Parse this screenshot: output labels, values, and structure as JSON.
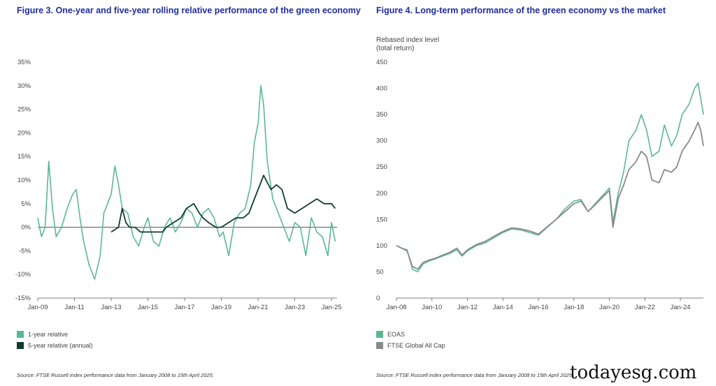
{
  "figure3": {
    "title": "Figure 3. One-year and five-year rolling relative performance of the green economy",
    "source": "Source: FTSE Russell index performance data from January 2008 to 15th April 2025.",
    "legend": [
      {
        "label": "1-year relative",
        "color": "#5ab893"
      },
      {
        "label": "5-year relative (annual)",
        "color": "#0f3d2a"
      }
    ]
  },
  "figure4": {
    "title": "Figure 4. Long-term performance of the green economy vs the market",
    "ylabel_line1": "Rebased index level",
    "ylabel_line2": "(total return)",
    "source": "Source: FTSE Russell index performance data from January 2008 to 15th April 2025.",
    "legend": [
      {
        "label": "EOAS",
        "color": "#5ab893"
      },
      {
        "label": "FTSE Global All Cap",
        "color": "#8a8a8a"
      }
    ]
  },
  "watermark": "todayesg.com",
  "chart_data": [
    {
      "type": "line",
      "title": "Figure 3. One-year and five-year rolling relative performance of the green economy",
      "xlabel": "",
      "ylabel": "",
      "x_range": [
        2009.0,
        2025.3
      ],
      "ylim": [
        -15,
        35
      ],
      "y_ticks": [
        35,
        30,
        25,
        20,
        15,
        10,
        5,
        0,
        -5,
        -10,
        -15
      ],
      "y_tick_labels": [
        "35%",
        "30%",
        "25%",
        "20%",
        "15%",
        "10%",
        "5%",
        "0%",
        "-5%",
        "-10%",
        "-15%"
      ],
      "x_ticks": [
        2009,
        2011,
        2013,
        2015,
        2017,
        2019,
        2021,
        2023,
        2025
      ],
      "x_tick_labels": [
        "Jan-09",
        "Jan-11",
        "Jan-13",
        "Jan-15",
        "Jan-17",
        "Jan-19",
        "Jan-21",
        "Jan-23",
        "Jan-25"
      ],
      "zero_line": true,
      "series": [
        {
          "name": "1-year relative",
          "color": "#5ab893",
          "x": [
            2009.0,
            2009.2,
            2009.4,
            2009.6,
            2009.8,
            2010.0,
            2010.3,
            2010.6,
            2010.9,
            2011.1,
            2011.3,
            2011.5,
            2011.8,
            2012.1,
            2012.4,
            2012.6,
            2012.8,
            2013.0,
            2013.2,
            2013.4,
            2013.6,
            2013.9,
            2014.2,
            2014.5,
            2014.8,
            2015.0,
            2015.3,
            2015.6,
            2015.9,
            2016.2,
            2016.5,
            2016.8,
            2017.1,
            2017.4,
            2017.7,
            2018.0,
            2018.3,
            2018.6,
            2018.9,
            2019.1,
            2019.4,
            2019.7,
            2020.0,
            2020.3,
            2020.6,
            2020.8,
            2021.0,
            2021.15,
            2021.3,
            2021.5,
            2021.8,
            2022.1,
            2022.4,
            2022.7,
            2023.0,
            2023.3,
            2023.6,
            2023.9,
            2024.2,
            2024.5,
            2024.8,
            2025.0,
            2025.2
          ],
          "values": [
            2,
            -2,
            0,
            14,
            4,
            -2,
            0,
            4,
            7,
            8,
            2,
            -3,
            -8,
            -11,
            -6,
            3,
            5,
            7,
            13,
            9,
            4,
            3,
            -2,
            -4,
            0,
            2,
            -3,
            -4,
            0,
            2,
            -1,
            1,
            4,
            3,
            0,
            3,
            4,
            2,
            -2,
            -1,
            -6,
            1,
            3,
            4,
            9,
            18,
            22,
            30,
            26,
            14,
            6,
            3,
            0,
            -3,
            1,
            0,
            -6,
            2,
            -1,
            -2,
            -6,
            1,
            -3
          ]
        },
        {
          "name": "5-year relative (annual)",
          "color": "#0f3d2a",
          "x": [
            2013.0,
            2013.4,
            2013.6,
            2013.8,
            2014.0,
            2014.3,
            2014.6,
            2015.0,
            2015.4,
            2015.8,
            2016.0,
            2016.4,
            2016.8,
            2017.1,
            2017.5,
            2017.8,
            2018.0,
            2018.3,
            2018.7,
            2019.0,
            2019.4,
            2019.8,
            2020.2,
            2020.5,
            2020.8,
            2021.0,
            2021.3,
            2021.7,
            2022.0,
            2022.3,
            2022.6,
            2023.0,
            2023.4,
            2023.8,
            2024.2,
            2024.6,
            2025.0,
            2025.2
          ],
          "values": [
            -1,
            0,
            4,
            1,
            0,
            0,
            -1,
            -1,
            -1,
            -1,
            0,
            1,
            2,
            4,
            5,
            3,
            2,
            1,
            0,
            0,
            1,
            2,
            2,
            3,
            6,
            8,
            11,
            8,
            9,
            8,
            4,
            3,
            4,
            5,
            6,
            5,
            5,
            4
          ]
        }
      ]
    },
    {
      "type": "line",
      "title": "Figure 4. Long-term performance of the green economy vs the market",
      "xlabel": "",
      "ylabel": "Rebased index level (total return)",
      "x_range": [
        2008.0,
        2025.3
      ],
      "ylim": [
        0,
        450
      ],
      "y_ticks": [
        0,
        50,
        100,
        150,
        200,
        250,
        300,
        350,
        400,
        450
      ],
      "y_tick_labels": [
        "0",
        "50",
        "100",
        "150",
        "200",
        "250",
        "300",
        "350",
        "400",
        "450"
      ],
      "x_ticks": [
        2008,
        2010,
        2012,
        2014,
        2016,
        2018,
        2020,
        2022,
        2024
      ],
      "x_tick_labels": [
        "Jan-08",
        "Jan-10",
        "Jan-12",
        "Jan-14",
        "Jan-16",
        "Jan-18",
        "Jan-20",
        "Jan-22",
        "Jan-24"
      ],
      "series": [
        {
          "name": "EOAS",
          "color": "#5ab893",
          "x": [
            2008.0,
            2008.3,
            2008.6,
            2008.9,
            2009.2,
            2009.5,
            2009.8,
            2010.2,
            2010.6,
            2011.0,
            2011.4,
            2011.7,
            2012.0,
            2012.5,
            2013.0,
            2013.5,
            2014.0,
            2014.5,
            2015.0,
            2015.5,
            2016.0,
            2016.5,
            2017.0,
            2017.5,
            2018.0,
            2018.4,
            2018.8,
            2019.2,
            2019.6,
            2020.0,
            2020.2,
            2020.5,
            2020.8,
            2021.1,
            2021.5,
            2021.8,
            2022.1,
            2022.4,
            2022.8,
            2023.1,
            2023.5,
            2023.8,
            2024.1,
            2024.5,
            2024.8,
            2025.0,
            2025.15,
            2025.3
          ],
          "values": [
            100,
            95,
            92,
            55,
            50,
            65,
            70,
            75,
            80,
            85,
            92,
            80,
            90,
            100,
            105,
            115,
            125,
            132,
            130,
            125,
            120,
            135,
            150,
            170,
            185,
            188,
            165,
            180,
            195,
            210,
            145,
            200,
            240,
            300,
            320,
            350,
            320,
            270,
            280,
            330,
            290,
            310,
            350,
            370,
            400,
            410,
            380,
            350
          ]
        },
        {
          "name": "FTSE Global All Cap",
          "color": "#8a8a8a",
          "x": [
            2008.0,
            2008.3,
            2008.6,
            2008.9,
            2009.2,
            2009.5,
            2009.8,
            2010.2,
            2010.6,
            2011.0,
            2011.4,
            2011.7,
            2012.0,
            2012.5,
            2013.0,
            2013.5,
            2014.0,
            2014.5,
            2015.0,
            2015.5,
            2016.0,
            2016.5,
            2017.0,
            2017.5,
            2018.0,
            2018.4,
            2018.8,
            2019.2,
            2019.6,
            2020.0,
            2020.2,
            2020.5,
            2020.8,
            2021.1,
            2021.5,
            2021.8,
            2022.1,
            2022.4,
            2022.8,
            2023.1,
            2023.5,
            2023.8,
            2024.1,
            2024.5,
            2024.8,
            2025.0,
            2025.15,
            2025.3
          ],
          "values": [
            100,
            95,
            90,
            60,
            55,
            68,
            72,
            76,
            82,
            87,
            95,
            82,
            92,
            102,
            108,
            118,
            127,
            134,
            132,
            128,
            122,
            136,
            150,
            165,
            180,
            185,
            165,
            178,
            192,
            205,
            135,
            190,
            215,
            245,
            260,
            280,
            270,
            225,
            220,
            245,
            240,
            250,
            280,
            300,
            320,
            335,
            320,
            290
          ]
        }
      ]
    }
  ]
}
